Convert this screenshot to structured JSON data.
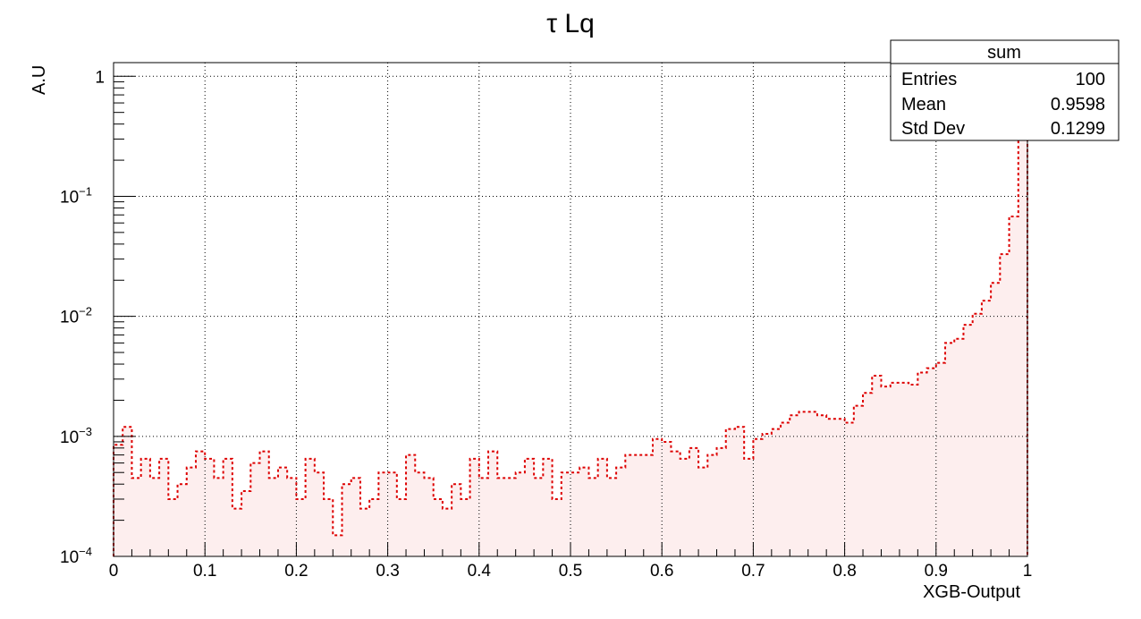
{
  "chart_data": {
    "type": "histogram",
    "title": "τ Lq",
    "xlabel": "XGB-Output",
    "ylabel": "A.U",
    "xlim": [
      0,
      1
    ],
    "ylim": [
      0.0001,
      1.3
    ],
    "yscale": "log",
    "grid": true,
    "x_ticks": [
      "0",
      "0.1",
      "0.2",
      "0.3",
      "0.4",
      "0.5",
      "0.6",
      "0.7",
      "0.8",
      "0.9",
      "1"
    ],
    "y_ticks": [
      {
        "value": 0.0001,
        "base": "10",
        "exp": "−4"
      },
      {
        "value": 0.001,
        "base": "10",
        "exp": "−3"
      },
      {
        "value": 0.01,
        "base": "10",
        "exp": "−2"
      },
      {
        "value": 0.1,
        "base": "10",
        "exp": "−1"
      },
      {
        "value": 1,
        "base": "1",
        "exp": ""
      }
    ],
    "line_color": "#dd0000",
    "fill_color": "#fdeeee",
    "line_style": "dotted",
    "bin_width": 0.01,
    "values": [
      0.00085,
      0.0012,
      0.00045,
      0.00065,
      0.00045,
      0.00065,
      0.0003,
      0.0004,
      0.00055,
      0.00075,
      0.00065,
      0.00045,
      0.00065,
      0.00025,
      0.00035,
      0.0006,
      0.00075,
      0.00045,
      0.00055,
      0.00045,
      0.0003,
      0.00065,
      0.0005,
      0.0003,
      0.00015,
      0.0004,
      0.00045,
      0.00025,
      0.0003,
      0.0005,
      0.0005,
      0.0003,
      0.0007,
      0.0005,
      0.00045,
      0.0003,
      0.00025,
      0.0004,
      0.0003,
      0.00065,
      0.00045,
      0.00075,
      0.00045,
      0.00045,
      0.0005,
      0.00065,
      0.00045,
      0.00065,
      0.0003,
      0.0005,
      0.0005,
      0.00055,
      0.00045,
      0.00065,
      0.00045,
      0.00055,
      0.0007,
      0.0007,
      0.0007,
      0.00095,
      0.0009,
      0.00075,
      0.00065,
      0.0008,
      0.00055,
      0.0007,
      0.0008,
      0.00115,
      0.0012,
      0.00065,
      0.00095,
      0.00105,
      0.00115,
      0.0013,
      0.0015,
      0.0016,
      0.0016,
      0.0015,
      0.0014,
      0.0014,
      0.0013,
      0.0018,
      0.0023,
      0.0032,
      0.0026,
      0.0028,
      0.0028,
      0.0027,
      0.0034,
      0.0037,
      0.0041,
      0.006,
      0.0065,
      0.0085,
      0.0105,
      0.0135,
      0.019,
      0.033,
      0.068,
      0.38
    ]
  },
  "stats_box": {
    "title": "sum",
    "rows": [
      {
        "label": "Entries",
        "value": "100"
      },
      {
        "label": "Mean",
        "value": "0.9598"
      },
      {
        "label": "Std Dev",
        "value": "0.1299"
      }
    ]
  }
}
